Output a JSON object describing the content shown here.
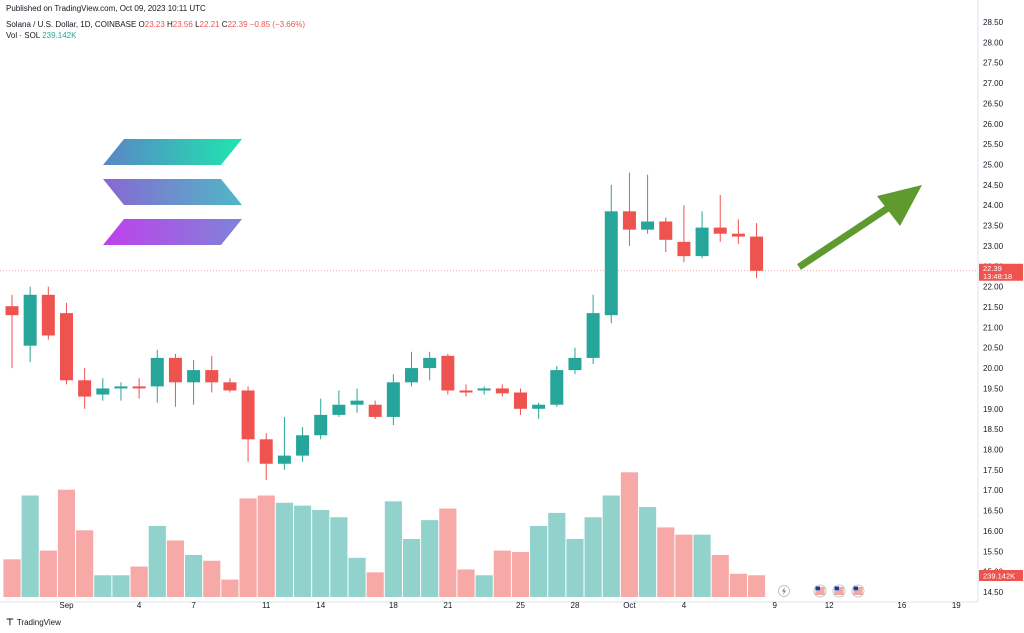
{
  "header": {
    "published": "Published on TradingView.com, Oct 09, 2023 10:11 UTC",
    "symbol": "Solana / U.S. Dollar, 1D, COINBASE",
    "o_label": "O",
    "o_val": "23.23",
    "h_label": "H",
    "h_val": "23.56",
    "l_label": "L",
    "l_val": "22.21",
    "c_label": "C",
    "c_val": "22.39",
    "change": "−0.85 (−3.66%)",
    "vol_label": "Vol · SOL",
    "vol_val": "239.142K"
  },
  "footer": {
    "brand": "TradingView",
    "logo": "tv-logo-icon"
  },
  "price_tag": {
    "value": "22.39",
    "countdown": "13:48:18",
    "color": "#ef5350"
  },
  "volume_tag": {
    "value": "239.142K",
    "color": "#ef5350"
  },
  "colors": {
    "up": "#26a69a",
    "down": "#ef5350",
    "up_vol": "#92d2cc",
    "down_vol": "#f7a9a7",
    "arrow": "#5f9a2f"
  },
  "icons": [
    "solana-logo-icon",
    "green-up-arrow-icon",
    "lightning-icon",
    "us-flag-icon"
  ],
  "chart_data": {
    "type": "candlestick",
    "ylim": [
      14.5,
      28.5
    ],
    "y_ticks": [
      "14.50",
      "15.00",
      "15.50",
      "16.00",
      "16.50",
      "17.00",
      "17.50",
      "18.00",
      "18.50",
      "19.00",
      "19.50",
      "20.00",
      "20.50",
      "21.00",
      "21.50",
      "22.00",
      "22.50",
      "23.00",
      "23.50",
      "24.00",
      "24.50",
      "25.00",
      "25.50",
      "26.00",
      "26.50",
      "27.00",
      "27.50",
      "28.00",
      "28.50"
    ],
    "x_ticks": [
      {
        "label": "28",
        "x": -1
      },
      {
        "label": "Sep",
        "x": 3
      },
      {
        "label": "4",
        "x": 7
      },
      {
        "label": "7",
        "x": 10
      },
      {
        "label": "11",
        "x": 14
      },
      {
        "label": "14",
        "x": 17
      },
      {
        "label": "18",
        "x": 21
      },
      {
        "label": "21",
        "x": 24
      },
      {
        "label": "25",
        "x": 28
      },
      {
        "label": "28",
        "x": 31
      },
      {
        "label": "Oct",
        "x": 34
      },
      {
        "label": "4",
        "x": 37
      },
      {
        "label": "9",
        "x": 42
      },
      {
        "label": "12",
        "x": 45
      },
      {
        "label": "16",
        "x": 49
      },
      {
        "label": "19",
        "x": 52
      }
    ],
    "candles": [
      {
        "o": 21.52,
        "h": 21.8,
        "l": 20.0,
        "c": 21.3,
        "v": 0.26
      },
      {
        "o": 20.55,
        "h": 22.0,
        "l": 20.15,
        "c": 21.8,
        "v": 0.7
      },
      {
        "o": 21.8,
        "h": 22.0,
        "l": 20.7,
        "c": 20.8,
        "v": 0.32
      },
      {
        "o": 21.35,
        "h": 21.6,
        "l": 19.6,
        "c": 19.7,
        "v": 0.74
      },
      {
        "o": 19.7,
        "h": 20.0,
        "l": 19.0,
        "c": 19.3,
        "v": 0.46
      },
      {
        "o": 19.35,
        "h": 19.75,
        "l": 19.2,
        "c": 19.5,
        "v": 0.15
      },
      {
        "o": 19.5,
        "h": 19.65,
        "l": 19.2,
        "c": 19.55,
        "v": 0.15
      },
      {
        "o": 19.55,
        "h": 19.75,
        "l": 19.25,
        "c": 19.5,
        "v": 0.21
      },
      {
        "o": 19.55,
        "h": 20.45,
        "l": 19.15,
        "c": 20.25,
        "v": 0.49
      },
      {
        "o": 20.25,
        "h": 20.35,
        "l": 19.05,
        "c": 19.65,
        "v": 0.39
      },
      {
        "o": 19.65,
        "h": 20.2,
        "l": 19.1,
        "c": 19.95,
        "v": 0.29
      },
      {
        "o": 19.95,
        "h": 20.3,
        "l": 19.4,
        "c": 19.65,
        "v": 0.25
      },
      {
        "o": 19.65,
        "h": 19.75,
        "l": 19.4,
        "c": 19.45,
        "v": 0.12
      },
      {
        "o": 19.45,
        "h": 19.55,
        "l": 17.7,
        "c": 18.25,
        "v": 0.68
      },
      {
        "o": 18.25,
        "h": 18.4,
        "l": 17.25,
        "c": 17.65,
        "v": 0.7
      },
      {
        "o": 17.65,
        "h": 18.8,
        "l": 17.5,
        "c": 17.85,
        "v": 0.65
      },
      {
        "o": 17.85,
        "h": 18.55,
        "l": 17.7,
        "c": 18.35,
        "v": 0.63
      },
      {
        "o": 18.35,
        "h": 19.25,
        "l": 18.25,
        "c": 18.85,
        "v": 0.6
      },
      {
        "o": 18.85,
        "h": 19.45,
        "l": 18.8,
        "c": 19.1,
        "v": 0.55
      },
      {
        "o": 19.1,
        "h": 19.5,
        "l": 18.9,
        "c": 19.2,
        "v": 0.27
      },
      {
        "o": 19.1,
        "h": 19.2,
        "l": 18.75,
        "c": 18.8,
        "v": 0.17
      },
      {
        "o": 18.8,
        "h": 19.85,
        "l": 18.6,
        "c": 19.65,
        "v": 0.66
      },
      {
        "o": 19.65,
        "h": 20.4,
        "l": 19.55,
        "c": 20.0,
        "v": 0.4
      },
      {
        "o": 20.0,
        "h": 20.4,
        "l": 19.7,
        "c": 20.25,
        "v": 0.53
      },
      {
        "o": 20.3,
        "h": 20.35,
        "l": 19.35,
        "c": 19.45,
        "v": 0.61
      },
      {
        "o": 19.45,
        "h": 19.6,
        "l": 19.3,
        "c": 19.4,
        "v": 0.19
      },
      {
        "o": 19.45,
        "h": 19.55,
        "l": 19.35,
        "c": 19.5,
        "v": 0.15
      },
      {
        "o": 19.5,
        "h": 19.6,
        "l": 19.3,
        "c": 19.38,
        "v": 0.32
      },
      {
        "o": 19.4,
        "h": 19.5,
        "l": 18.85,
        "c": 19.0,
        "v": 0.31
      },
      {
        "o": 19.0,
        "h": 19.15,
        "l": 18.75,
        "c": 19.1,
        "v": 0.49
      },
      {
        "o": 19.1,
        "h": 20.05,
        "l": 19.05,
        "c": 19.95,
        "v": 0.58
      },
      {
        "o": 19.95,
        "h": 20.5,
        "l": 19.85,
        "c": 20.25,
        "v": 0.4
      },
      {
        "o": 20.25,
        "h": 21.8,
        "l": 20.1,
        "c": 21.35,
        "v": 0.55
      },
      {
        "o": 21.3,
        "h": 24.5,
        "l": 21.1,
        "c": 23.85,
        "v": 0.7
      },
      {
        "o": 23.85,
        "h": 24.8,
        "l": 23.0,
        "c": 23.4,
        "v": 0.86
      },
      {
        "o": 23.4,
        "h": 24.75,
        "l": 23.3,
        "c": 23.6,
        "v": 0.62
      },
      {
        "o": 23.6,
        "h": 23.7,
        "l": 22.85,
        "c": 23.15,
        "v": 0.48
      },
      {
        "o": 23.1,
        "h": 24.0,
        "l": 22.6,
        "c": 22.75,
        "v": 0.43
      },
      {
        "o": 22.75,
        "h": 23.85,
        "l": 22.7,
        "c": 23.45,
        "v": 0.43
      },
      {
        "o": 23.45,
        "h": 24.25,
        "l": 23.1,
        "c": 23.3,
        "v": 0.29
      },
      {
        "o": 23.3,
        "h": 23.65,
        "l": 23.05,
        "c": 23.23,
        "v": 0.16
      },
      {
        "o": 23.23,
        "h": 23.56,
        "l": 22.21,
        "c": 22.39,
        "v": 0.15
      }
    ]
  }
}
